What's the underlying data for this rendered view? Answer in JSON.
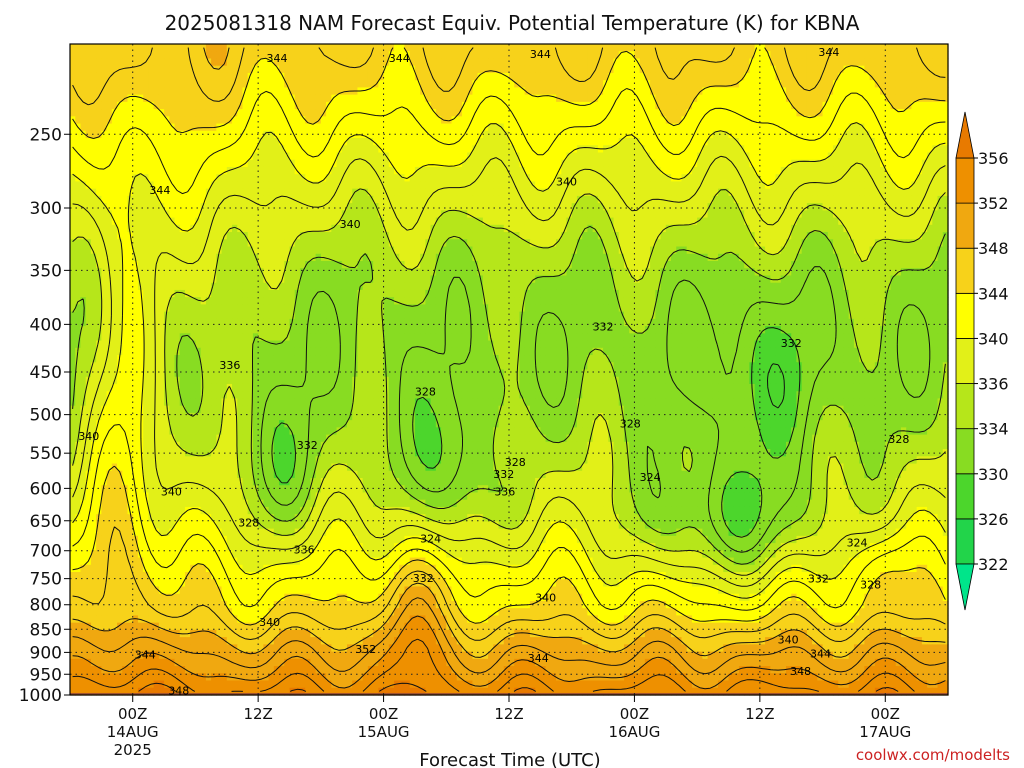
{
  "chart_data": {
    "type": "heatmap",
    "title": "2025081318 NAM Forecast Equiv. Potential Temperature (K) for KBNA",
    "xlabel": "Forecast Time (UTC)",
    "ylabel": "",
    "x_ticks": [
      {
        "hour": 6,
        "label": "00Z",
        "sub1": "14AUG",
        "sub2": "2025"
      },
      {
        "hour": 18,
        "label": "12Z",
        "sub1": "",
        "sub2": ""
      },
      {
        "hour": 30,
        "label": "00Z",
        "sub1": "15AUG",
        "sub2": ""
      },
      {
        "hour": 42,
        "label": "12Z",
        "sub1": "",
        "sub2": ""
      },
      {
        "hour": 54,
        "label": "00Z",
        "sub1": "16AUG",
        "sub2": ""
      },
      {
        "hour": 66,
        "label": "12Z",
        "sub1": "",
        "sub2": ""
      },
      {
        "hour": 78,
        "label": "00Z",
        "sub1": "17AUG",
        "sub2": ""
      }
    ],
    "xlim": [
      0,
      84
    ],
    "y_scale": "log",
    "ylim": [
      1000,
      200
    ],
    "y_ticks": [
      250,
      300,
      350,
      400,
      450,
      500,
      550,
      600,
      650,
      700,
      750,
      800,
      850,
      900,
      950,
      1000
    ],
    "y_tick_labels": [
      "250",
      "300",
      "350",
      "400",
      "450",
      "500",
      "550",
      "600",
      "650",
      "700",
      "750",
      "800",
      "850",
      "900",
      "950",
      "1000"
    ],
    "grid": true,
    "colorbar": {
      "levels": [
        322,
        326,
        330,
        334,
        336,
        340,
        344,
        348,
        352,
        356
      ],
      "labels": [
        "322",
        "326",
        "330",
        "334",
        "336",
        "340",
        "344",
        "348",
        "352",
        "356"
      ],
      "colors": [
        "#00e58a",
        "#22d44a",
        "#4cd62c",
        "#88dc22",
        "#b6e61a",
        "#e2f018",
        "#ffff00",
        "#f7d21a",
        "#f0a810",
        "#ee9000",
        "#e87a00"
      ]
    },
    "contour_labels": [
      {
        "hour": 19.8,
        "p": 207,
        "text": "344"
      },
      {
        "hour": 31.5,
        "p": 207,
        "text": "344"
      },
      {
        "hour": 45.0,
        "p": 205,
        "text": "344"
      },
      {
        "hour": 72.6,
        "p": 204,
        "text": "344"
      },
      {
        "hour": 8.6,
        "p": 287,
        "text": "344"
      },
      {
        "hour": 47.5,
        "p": 281,
        "text": "340"
      },
      {
        "hour": 26.8,
        "p": 312,
        "text": "340"
      },
      {
        "hour": 51.0,
        "p": 402,
        "text": "332"
      },
      {
        "hour": 69.0,
        "p": 419,
        "text": "332"
      },
      {
        "hour": 15.3,
        "p": 442,
        "text": "336"
      },
      {
        "hour": 34.0,
        "p": 472,
        "text": "328"
      },
      {
        "hour": 22.7,
        "p": 539,
        "text": "332"
      },
      {
        "hour": 53.6,
        "p": 511,
        "text": "328"
      },
      {
        "hour": 79.3,
        "p": 531,
        "text": "328"
      },
      {
        "hour": 1.8,
        "p": 527,
        "text": "340"
      },
      {
        "hour": 42.6,
        "p": 562,
        "text": "328"
      },
      {
        "hour": 41.5,
        "p": 579,
        "text": "332"
      },
      {
        "hour": 55.5,
        "p": 583,
        "text": "324"
      },
      {
        "hour": 41.6,
        "p": 605,
        "text": "336"
      },
      {
        "hour": 9.7,
        "p": 605,
        "text": "340"
      },
      {
        "hour": 17.1,
        "p": 653,
        "text": "328"
      },
      {
        "hour": 34.5,
        "p": 679,
        "text": "324"
      },
      {
        "hour": 75.3,
        "p": 686,
        "text": "324"
      },
      {
        "hour": 22.4,
        "p": 698,
        "text": "336"
      },
      {
        "hour": 33.8,
        "p": 749,
        "text": "332"
      },
      {
        "hour": 71.6,
        "p": 750,
        "text": "332"
      },
      {
        "hour": 76.6,
        "p": 761,
        "text": "328"
      },
      {
        "hour": 45.5,
        "p": 786,
        "text": "340"
      },
      {
        "hour": 19.1,
        "p": 835,
        "text": "340"
      },
      {
        "hour": 68.7,
        "p": 872,
        "text": "340"
      },
      {
        "hour": 28.3,
        "p": 893,
        "text": "352"
      },
      {
        "hour": 7.2,
        "p": 905,
        "text": "344"
      },
      {
        "hour": 44.8,
        "p": 913,
        "text": "344"
      },
      {
        "hour": 71.8,
        "p": 903,
        "text": "344"
      },
      {
        "hour": 69.9,
        "p": 942,
        "text": "348"
      },
      {
        "hour": 10.4,
        "p": 989,
        "text": "348"
      }
    ]
  },
  "credit": "coolwx.com/modelts"
}
